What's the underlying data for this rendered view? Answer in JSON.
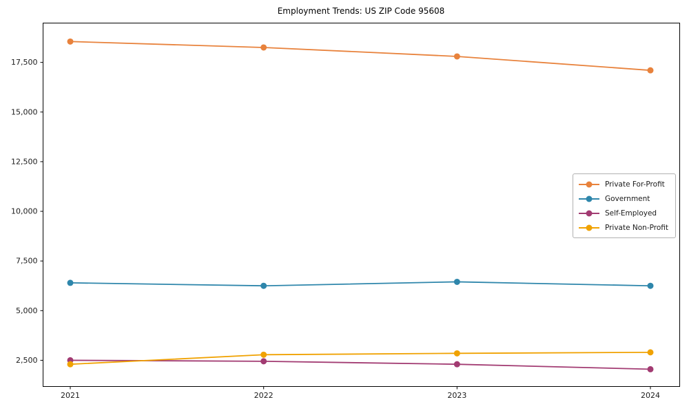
{
  "chart_data": {
    "type": "line",
    "title": "Employment Trends: US ZIP Code 95608",
    "xlabel": "",
    "ylabel": "",
    "categories": [
      "2021",
      "2022",
      "2023",
      "2024"
    ],
    "series": [
      {
        "name": "Private For-Profit",
        "color": "#E8823C",
        "values": [
          18550,
          18250,
          17800,
          17100
        ]
      },
      {
        "name": "Government",
        "color": "#2E86AB",
        "values": [
          6400,
          6250,
          6450,
          6250
        ]
      },
      {
        "name": "Self-Employed",
        "color": "#A23B72",
        "values": [
          2500,
          2450,
          2300,
          2050
        ]
      },
      {
        "name": "Private Non-Profit",
        "color": "#F0A202",
        "values": [
          2300,
          2780,
          2850,
          2900
        ]
      }
    ],
    "yticks": [
      2500,
      5000,
      7500,
      10000,
      12500,
      15000,
      17500
    ],
    "ylim": [
      1180,
      19480
    ],
    "grid": false,
    "legend_position": "center right",
    "axis_color": "#000000",
    "text_color": "#1a1a1a",
    "background": "#ffffff"
  }
}
